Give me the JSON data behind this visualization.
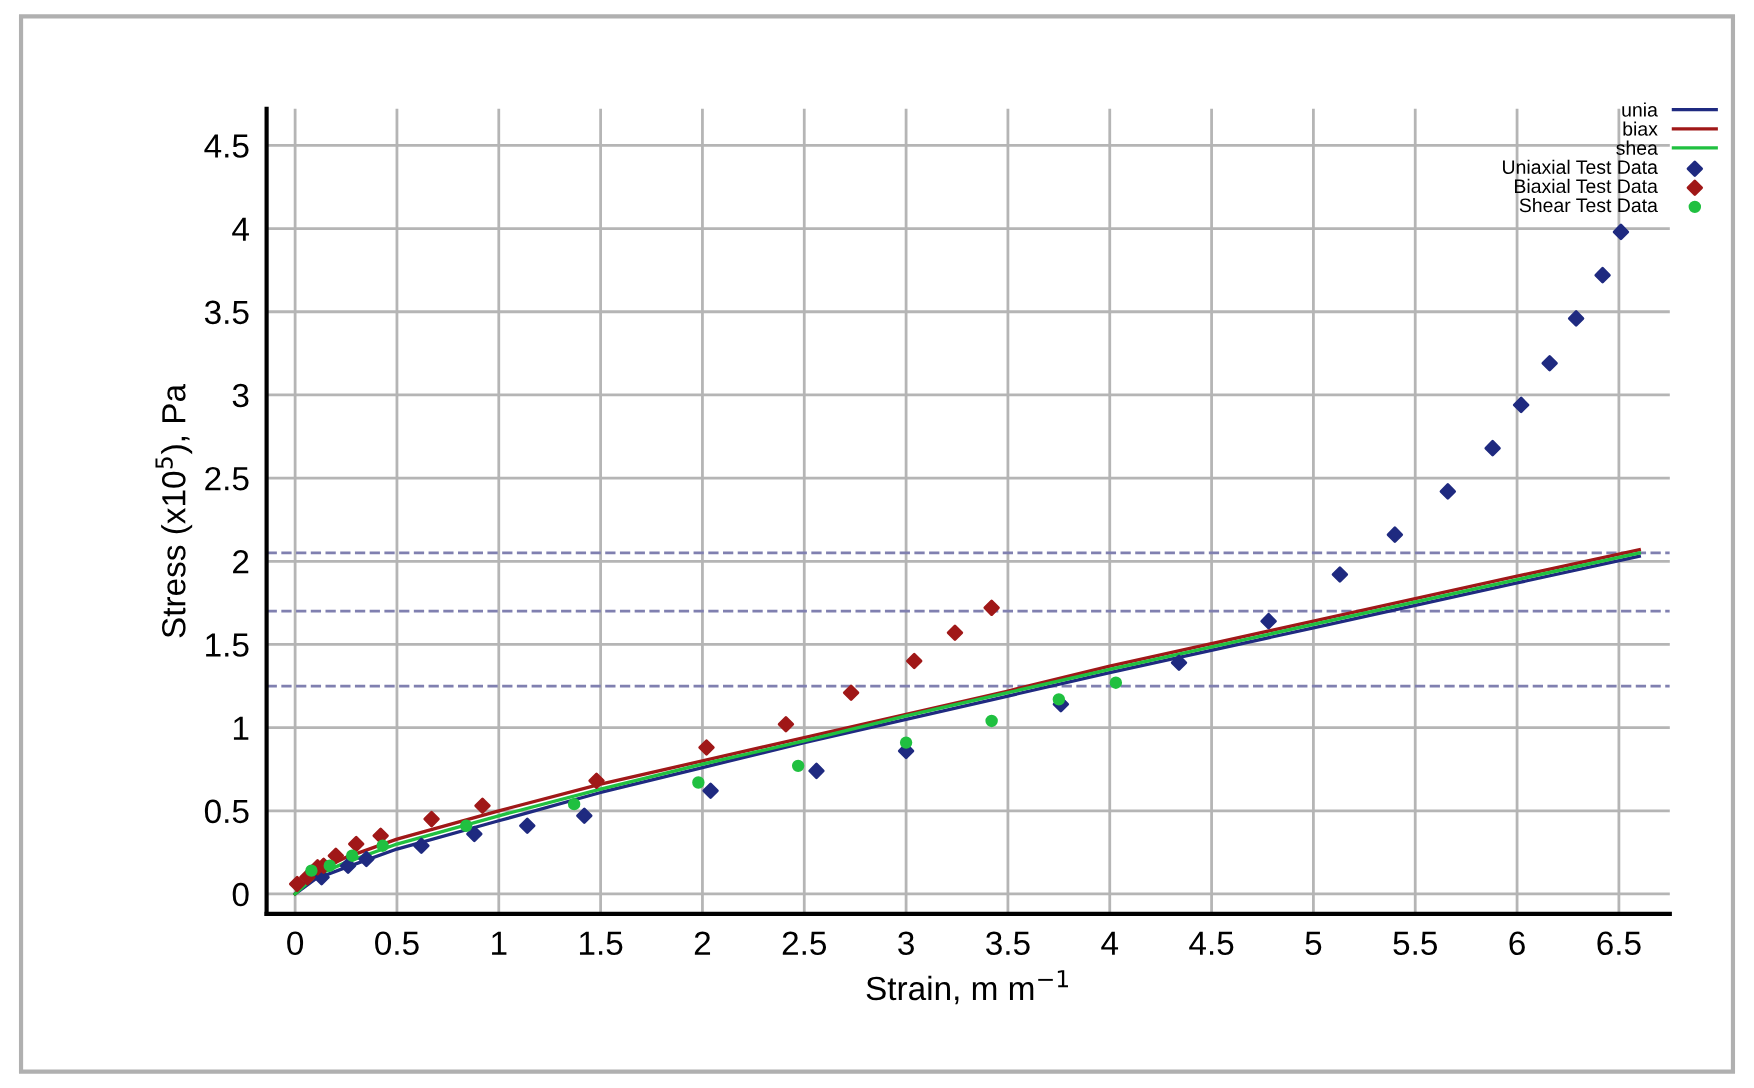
{
  "chart_data": {
    "type": "scatter",
    "xlabel": "Strain, m m$^{−1}$",
    "ylabel": "Stress (x10$^{5}$), Pa",
    "xlim": [
      -0.14,
      6.75
    ],
    "ylim": [
      -0.12,
      4.72
    ],
    "xticks": [
      0,
      0.5,
      1,
      1.5,
      2,
      2.5,
      3,
      3.5,
      4,
      4.5,
      5,
      5.5,
      6,
      6.5
    ],
    "yticks": [
      0,
      0.5,
      1,
      1.5,
      2,
      2.5,
      3,
      3.5,
      4,
      4.5
    ],
    "grid": true,
    "legend": "top right",
    "ref_lines": [
      {
        "axis": "y",
        "value": 2.05,
        "label": null,
        "color": "#8080b0",
        "line_style": "dashed"
      },
      {
        "axis": "y",
        "value": 1.7,
        "label": null,
        "color": "#8080b0",
        "line_style": "dashed"
      },
      {
        "axis": "y",
        "value": 1.25,
        "label": null,
        "color": "#8080b0",
        "line_style": "dashed"
      }
    ],
    "series": [
      {
        "name": "unia",
        "type": "line",
        "color": "#1f2a80",
        "x": [
          0,
          0.1,
          0.25,
          0.5,
          1,
          1.5,
          2,
          2.5,
          3,
          3.5,
          4,
          5,
          6,
          6.6
        ],
        "values": [
          0,
          0.09,
          0.16,
          0.27,
          0.44,
          0.61,
          0.76,
          0.91,
          1.05,
          1.19,
          1.33,
          1.6,
          1.87,
          2.03
        ]
      },
      {
        "name": "biax",
        "type": "line",
        "color": "#a01818",
        "x": [
          0,
          0.1,
          0.25,
          0.5,
          1,
          1.5,
          2,
          2.5,
          3,
          3.5,
          4,
          5,
          6,
          6.6
        ],
        "values": [
          0,
          0.13,
          0.22,
          0.33,
          0.5,
          0.66,
          0.8,
          0.94,
          1.08,
          1.22,
          1.37,
          1.64,
          1.91,
          2.07
        ]
      },
      {
        "name": "shea",
        "type": "line",
        "color": "#20c040",
        "x": [
          0,
          0.1,
          0.25,
          0.5,
          1,
          1.5,
          2,
          2.5,
          3,
          3.5,
          4,
          5,
          6,
          6.6
        ],
        "values": [
          0,
          0.11,
          0.19,
          0.3,
          0.47,
          0.63,
          0.78,
          0.92,
          1.07,
          1.21,
          1.35,
          1.62,
          1.89,
          2.05
        ]
      },
      {
        "name": "Uniaxial Test Data",
        "marker": "diamond",
        "color": "#1f2a80",
        "x": [
          0.13,
          0.26,
          0.35,
          0.62,
          0.88,
          1.14,
          1.42,
          2.04,
          2.56,
          3.0,
          3.76,
          4.34,
          4.78,
          5.13,
          5.4,
          5.66,
          5.88,
          6.02,
          6.16,
          6.29,
          6.42,
          6.51
        ],
        "values": [
          0.1,
          0.17,
          0.21,
          0.29,
          0.36,
          0.41,
          0.47,
          0.62,
          0.74,
          0.86,
          1.14,
          1.39,
          1.64,
          1.92,
          2.16,
          2.42,
          2.68,
          2.94,
          3.19,
          3.46,
          3.72,
          3.98
        ]
      },
      {
        "name": "Biaxial Test Data",
        "marker": "diamond",
        "color": "#a01818",
        "x": [
          0.01,
          0.06,
          0.11,
          0.14,
          0.2,
          0.3,
          0.42,
          0.67,
          0.92,
          1.48,
          2.02,
          2.41,
          2.73,
          3.04,
          3.24,
          3.42
        ],
        "values": [
          0.06,
          0.1,
          0.16,
          0.17,
          0.23,
          0.3,
          0.35,
          0.45,
          0.53,
          0.68,
          0.88,
          1.02,
          1.21,
          1.4,
          1.57,
          1.72
        ]
      },
      {
        "name": "Shear Test Data",
        "marker": "circle",
        "color": "#20c040",
        "x": [
          0.08,
          0.17,
          0.28,
          0.43,
          0.84,
          1.37,
          1.98,
          2.47,
          3.0,
          3.42,
          3.75,
          4.03
        ],
        "values": [
          0.14,
          0.17,
          0.23,
          0.29,
          0.41,
          0.54,
          0.67,
          0.77,
          0.91,
          1.04,
          1.17,
          1.27
        ]
      }
    ]
  }
}
